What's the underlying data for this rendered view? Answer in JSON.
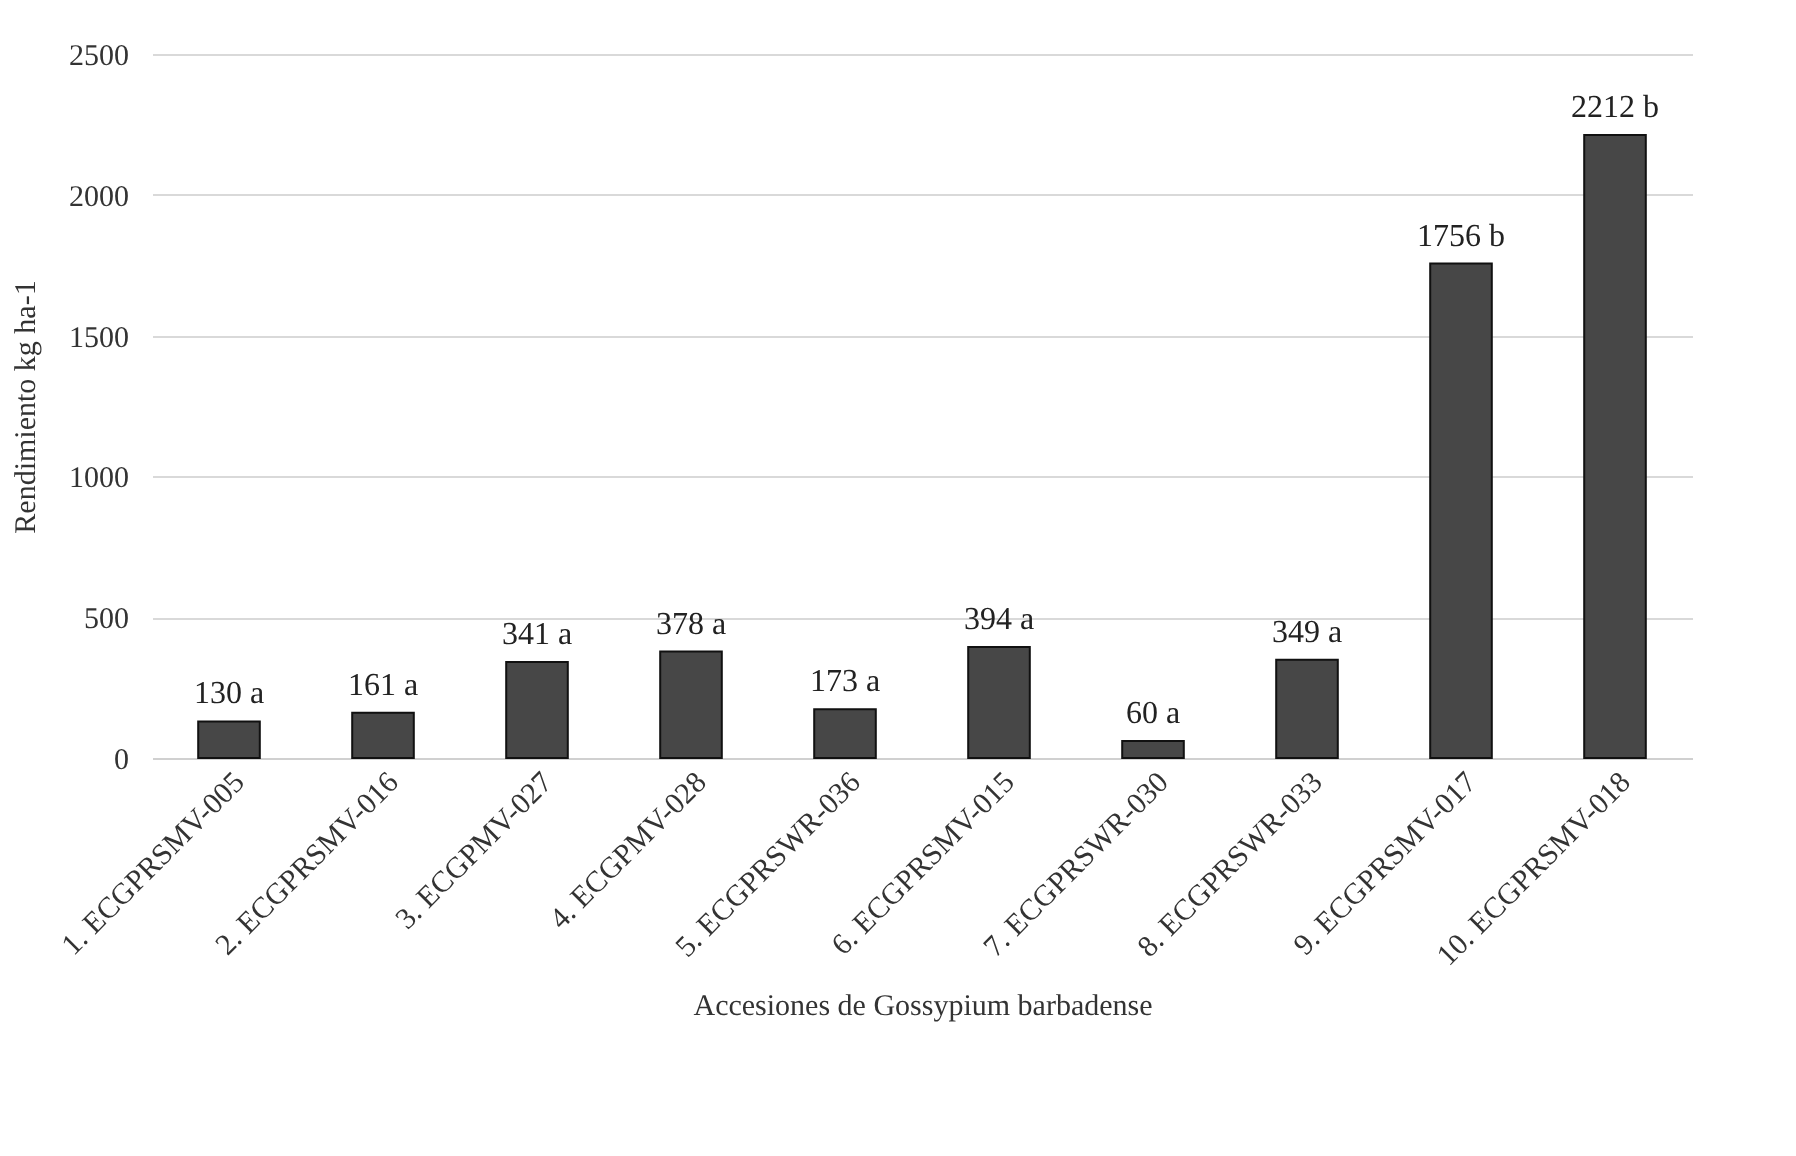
{
  "chart_data": {
    "type": "bar",
    "xlabel": "Accesiones de Gossypium barbadense",
    "ylabel": "Rendimiento  kg ha-1",
    "categories": [
      "1. ECGPRSMV-005",
      "2. ECGPRSMV-016",
      "3. ECGPMV-027",
      "4. ECGPMV-028",
      "5. ECGPRSWR-036",
      "6. ECGPRSMV-015",
      "7. ECGPRSWR-030",
      "8. ECGPRSWR-033",
      "9. ECGPRSMV-017",
      "10. ECGPRSMV-018"
    ],
    "values": [
      130,
      161,
      341,
      378,
      173,
      394,
      60,
      349,
      1756,
      2212
    ],
    "value_labels": [
      "130 a",
      "161 a",
      "341 a",
      "378 a",
      "173 a",
      "394 a",
      "60 a",
      "349 a",
      "1756 b",
      "2212 b"
    ],
    "color": "#474747",
    "ylim": [
      0,
      2500
    ],
    "yticks": [
      0,
      500,
      1000,
      1500,
      2000,
      2500
    ],
    "grid": "y"
  }
}
